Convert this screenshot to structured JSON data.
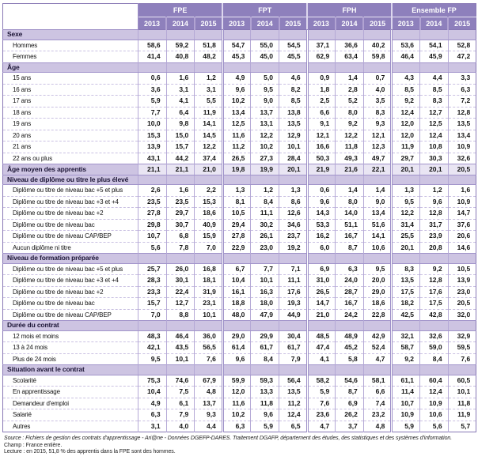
{
  "chart_data": {
    "type": "table",
    "title": "",
    "column_groups": [
      "FPE",
      "FPT",
      "FPH",
      "Ensemble FP"
    ],
    "years": [
      "2013",
      "2014",
      "2015"
    ],
    "colors": {
      "header_bg": "#8e80bc",
      "header_text": "#ffffff",
      "section_bg": "#cdc4e2",
      "summary_bg": "#e9e5f3",
      "outer_border": "#8878b5",
      "grid_line": "#b5a9d6",
      "row_dash": "#c9c0e2"
    },
    "rows": [
      {
        "type": "section",
        "label": "Sexe",
        "values": []
      },
      {
        "type": "data",
        "label": "Hommes",
        "values": [
          "58,6",
          "59,2",
          "51,8",
          "54,7",
          "55,0",
          "54,5",
          "37,1",
          "36,6",
          "40,2",
          "53,6",
          "54,1",
          "52,8"
        ]
      },
      {
        "type": "data",
        "label": "Femmes",
        "values": [
          "41,4",
          "40,8",
          "48,2",
          "45,3",
          "45,0",
          "45,5",
          "62,9",
          "63,4",
          "59,8",
          "46,4",
          "45,9",
          "47,2"
        ]
      },
      {
        "type": "section",
        "label": "Âge",
        "values": []
      },
      {
        "type": "data",
        "label": "15 ans",
        "values": [
          "0,6",
          "1,6",
          "1,2",
          "4,9",
          "5,0",
          "4,6",
          "0,9",
          "1,4",
          "0,7",
          "4,3",
          "4,4",
          "3,3"
        ]
      },
      {
        "type": "data",
        "label": "16 ans",
        "values": [
          "3,6",
          "3,1",
          "3,1",
          "9,6",
          "9,5",
          "8,2",
          "1,8",
          "2,8",
          "4,0",
          "8,5",
          "8,5",
          "6,3"
        ]
      },
      {
        "type": "data",
        "label": "17 ans",
        "values": [
          "5,9",
          "4,1",
          "5,5",
          "10,2",
          "9,0",
          "8,5",
          "2,5",
          "5,2",
          "3,5",
          "9,2",
          "8,3",
          "7,2"
        ]
      },
      {
        "type": "data",
        "label": "18 ans",
        "values": [
          "7,7",
          "6,4",
          "11,9",
          "13,4",
          "13,7",
          "13,8",
          "6,6",
          "8,0",
          "8,3",
          "12,4",
          "12,7",
          "12,8"
        ]
      },
      {
        "type": "data",
        "label": "19 ans",
        "values": [
          "10,0",
          "9,8",
          "14,1",
          "12,5",
          "13,1",
          "13,5",
          "9,1",
          "9,2",
          "9,3",
          "12,0",
          "12,5",
          "13,5"
        ]
      },
      {
        "type": "data",
        "label": "20 ans",
        "values": [
          "15,3",
          "15,0",
          "14,5",
          "11,6",
          "12,2",
          "12,9",
          "12,1",
          "12,2",
          "12,1",
          "12,0",
          "12,4",
          "13,4"
        ]
      },
      {
        "type": "data",
        "label": "21 ans",
        "values": [
          "13,9",
          "15,7",
          "12,2",
          "11,2",
          "10,2",
          "10,1",
          "16,6",
          "11,8",
          "12,3",
          "11,9",
          "10,8",
          "10,9"
        ]
      },
      {
        "type": "data",
        "label": "22 ans ou plus",
        "values": [
          "43,1",
          "44,2",
          "37,4",
          "26,5",
          "27,3",
          "28,4",
          "50,3",
          "49,3",
          "49,7",
          "29,7",
          "30,3",
          "32,6"
        ]
      },
      {
        "type": "summary",
        "label": "Âge moyen des apprentis",
        "values": [
          "21,1",
          "21,1",
          "21,0",
          "19,8",
          "19,9",
          "20,1",
          "21,9",
          "21,6",
          "22,1",
          "20,1",
          "20,1",
          "20,5"
        ]
      },
      {
        "type": "section",
        "label": "Niveau de diplôme ou titre le plus élevé",
        "values": []
      },
      {
        "type": "data",
        "label": "Diplôme ou titre de niveau bac +5 et plus",
        "values": [
          "2,6",
          "1,6",
          "2,2",
          "1,3",
          "1,2",
          "1,3",
          "0,6",
          "1,4",
          "1,4",
          "1,3",
          "1,2",
          "1,6"
        ]
      },
      {
        "type": "data",
        "label": "Diplôme ou titre de niveau bac +3 et +4",
        "values": [
          "23,5",
          "23,5",
          "15,3",
          "8,1",
          "8,4",
          "8,6",
          "9,6",
          "8,0",
          "9,0",
          "9,5",
          "9,6",
          "10,9"
        ]
      },
      {
        "type": "data",
        "label": "Diplôme ou titre de niveau bac +2",
        "values": [
          "27,8",
          "29,7",
          "18,6",
          "10,5",
          "11,1",
          "12,6",
          "14,3",
          "14,0",
          "13,4",
          "12,2",
          "12,8",
          "14,7"
        ]
      },
      {
        "type": "data",
        "label": "Diplôme ou titre de niveau bac",
        "values": [
          "29,8",
          "30,7",
          "40,9",
          "29,4",
          "30,2",
          "34,6",
          "53,3",
          "51,1",
          "51,6",
          "31,4",
          "31,7",
          "37,6"
        ]
      },
      {
        "type": "data",
        "label": "Diplôme ou titre de niveau CAP/BEP",
        "values": [
          "10,7",
          "6,8",
          "15,9",
          "27,8",
          "26,1",
          "23,7",
          "16,2",
          "16,7",
          "14,1",
          "25,5",
          "23,9",
          "20,6"
        ]
      },
      {
        "type": "data",
        "label": "Aucun diplôme ni titre",
        "values": [
          "5,6",
          "7,8",
          "7,0",
          "22,9",
          "23,0",
          "19,2",
          "6,0",
          "8,7",
          "10,6",
          "20,1",
          "20,8",
          "14,6"
        ]
      },
      {
        "type": "section",
        "label": "Niveau de formation préparée",
        "values": []
      },
      {
        "type": "data",
        "label": "Diplôme ou titre de niveau bac +5 et plus",
        "values": [
          "25,7",
          "26,0",
          "16,8",
          "6,7",
          "7,7",
          "7,1",
          "6,9",
          "6,3",
          "9,5",
          "8,3",
          "9,2",
          "10,5"
        ]
      },
      {
        "type": "data",
        "label": "Diplôme ou titre de niveau bac +3 et +4",
        "values": [
          "28,3",
          "30,1",
          "18,1",
          "10,4",
          "10,1",
          "11,1",
          "31,0",
          "24,0",
          "20,0",
          "13,5",
          "12,8",
          "13,9"
        ]
      },
      {
        "type": "data",
        "label": "Diplôme ou titre de niveau bac +2",
        "values": [
          "23,3",
          "22,4",
          "31,9",
          "16,1",
          "16,3",
          "17,6",
          "26,5",
          "28,7",
          "29,0",
          "17,5",
          "17,6",
          "23,0"
        ]
      },
      {
        "type": "data",
        "label": "Diplôme ou titre de niveau bac",
        "values": [
          "15,7",
          "12,7",
          "23,1",
          "18,8",
          "18,0",
          "19,3",
          "14,7",
          "16,7",
          "18,6",
          "18,2",
          "17,5",
          "20,5"
        ]
      },
      {
        "type": "data",
        "label": "Diplôme ou titre de niveau CAP/BEP",
        "values": [
          "7,0",
          "8,8",
          "10,1",
          "48,0",
          "47,9",
          "44,9",
          "21,0",
          "24,2",
          "22,8",
          "42,5",
          "42,8",
          "32,0"
        ]
      },
      {
        "type": "section",
        "label": "Durée du contrat",
        "values": []
      },
      {
        "type": "data",
        "label": "12 mois et moins",
        "values": [
          "48,3",
          "46,4",
          "36,0",
          "29,0",
          "29,9",
          "30,4",
          "48,5",
          "48,9",
          "42,9",
          "32,1",
          "32,6",
          "32,9"
        ]
      },
      {
        "type": "data",
        "label": "13 à 24 mois",
        "values": [
          "42,1",
          "43,5",
          "56,5",
          "61,4",
          "61,7",
          "61,7",
          "47,4",
          "45,2",
          "52,4",
          "58,7",
          "59,0",
          "59,5"
        ]
      },
      {
        "type": "data",
        "label": "Plus de 24 mois",
        "values": [
          "9,5",
          "10,1",
          "7,6",
          "9,6",
          "8,4",
          "7,9",
          "4,1",
          "5,8",
          "4,7",
          "9,2",
          "8,4",
          "7,6"
        ]
      },
      {
        "type": "section",
        "label": "Situation avant le contrat",
        "values": []
      },
      {
        "type": "data",
        "label": "Scolarité",
        "values": [
          "75,3",
          "74,6",
          "67,9",
          "59,9",
          "59,3",
          "56,4",
          "58,2",
          "54,6",
          "58,1",
          "61,1",
          "60,4",
          "60,5"
        ]
      },
      {
        "type": "data",
        "label": "En apprentissage",
        "values": [
          "10,4",
          "7,5",
          "4,8",
          "12,0",
          "13,3",
          "13,5",
          "5,9",
          "8,7",
          "6,6",
          "11,4",
          "12,4",
          "10,1"
        ]
      },
      {
        "type": "data",
        "label": "Demandeur d'emploi",
        "values": [
          "4,9",
          "6,1",
          "13,7",
          "11,6",
          "11,8",
          "11,2",
          "7,6",
          "6,9",
          "7,4",
          "10,7",
          "10,9",
          "11,8"
        ]
      },
      {
        "type": "data",
        "label": "Salarié",
        "values": [
          "6,3",
          "7,9",
          "9,3",
          "10,2",
          "9,6",
          "12,4",
          "23,6",
          "26,2",
          "23,2",
          "10,9",
          "10,6",
          "11,9"
        ]
      },
      {
        "type": "data",
        "label": "Autres",
        "values": [
          "3,1",
          "4,0",
          "4,4",
          "6,3",
          "5,9",
          "6,5",
          "4,7",
          "3,7",
          "4,8",
          "5,9",
          "5,6",
          "5,7"
        ]
      }
    ],
    "notes": {
      "source": "Source : Fichiers de gestion des contrats d'apprentissage - Ari@ne - Données DGEFP-DARES. Traitement DGAFP, département des études, des statistiques et des systèmes d'information.",
      "champ": "Champ : France entière.",
      "lecture": "Lecture : en 2015, 51,8 % des apprentis dans la FPE sont des hommes."
    }
  }
}
